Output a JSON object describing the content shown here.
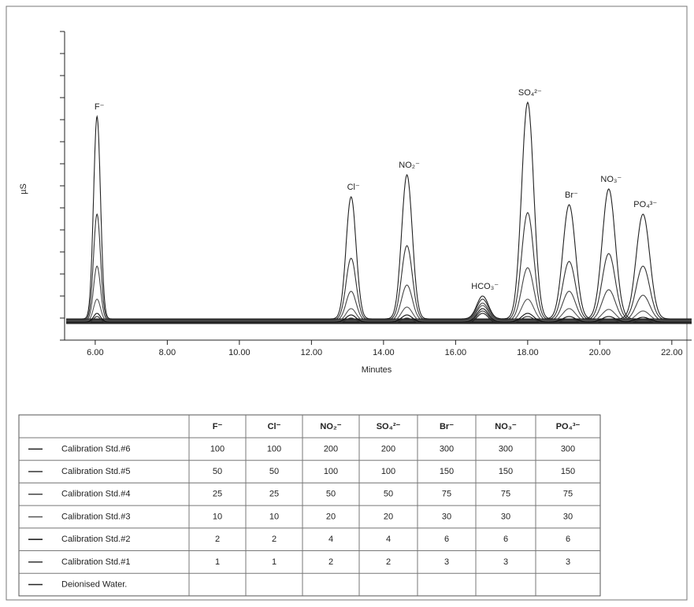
{
  "chart_data": {
    "type": "chromatogram",
    "x_label": "Minutes",
    "y_label": "µS",
    "xlim": [
      5.15,
      22.55
    ],
    "ylim": [
      0,
      392
    ],
    "xticks": [
      {
        "value": 6,
        "label": "6.00"
      },
      {
        "value": 8,
        "label": "8.00"
      },
      {
        "value": 10,
        "label": "10.00"
      },
      {
        "value": 12,
        "label": "12.00"
      },
      {
        "value": 14,
        "label": "14.00"
      },
      {
        "value": 16,
        "label": "16.00"
      },
      {
        "value": 18,
        "label": "18.00"
      },
      {
        "value": 20,
        "label": "20.00"
      },
      {
        "value": 22,
        "label": "22.00"
      }
    ],
    "yticks": [
      0,
      28,
      56,
      84,
      112,
      140,
      168,
      196,
      224,
      252,
      280,
      308,
      336,
      364,
      392
    ],
    "peaks": [
      {
        "label": "F⁻",
        "x": 6.05
      },
      {
        "label": "Cl⁻",
        "x": 13.1
      },
      {
        "label": "NO₂⁻",
        "x": 14.65
      },
      {
        "label": "HCO₃⁻",
        "x": 16.75
      },
      {
        "label": "SO₄²⁻",
        "x": 18.0
      },
      {
        "label": "Br⁻",
        "x": 19.15
      },
      {
        "label": "NO₃⁻",
        "x": 20.25
      },
      {
        "label": "PO₄³⁻",
        "x": 21.2
      }
    ],
    "series": [
      {
        "name": "Calibration Std.#6",
        "color": "#222222",
        "baseline": 27,
        "values": [
          284,
          182,
          210,
          56,
          302,
          172,
          192,
          160
        ]
      },
      {
        "name": "Calibration Std.#5",
        "color": "#333333",
        "baseline": 26,
        "values": [
          160,
          104,
          120,
          52,
          162,
          100,
          110,
          94
        ]
      },
      {
        "name": "Calibration Std.#4",
        "color": "#444444",
        "baseline": 25,
        "values": [
          94,
          62,
          70,
          47,
          92,
          62,
          64,
          57
        ]
      },
      {
        "name": "Calibration Std.#3",
        "color": "#555555",
        "baseline": 24,
        "values": [
          52,
          40,
          42,
          44,
          52,
          40,
          39,
          37
        ]
      },
      {
        "name": "Calibration Std.#2",
        "color": "#111111",
        "baseline": 23,
        "values": [
          34,
          32,
          32,
          40,
          34,
          30,
          30,
          29
        ]
      },
      {
        "name": "Calibration Std.#1",
        "color": "#333333",
        "baseline": 22,
        "values": [
          30,
          28,
          28,
          37,
          30,
          27,
          27,
          26
        ]
      },
      {
        "name": "Deionised Water.",
        "color": "#222222",
        "baseline": 21,
        "values": [
          21,
          21,
          21,
          34,
          21,
          21,
          21,
          21
        ]
      }
    ]
  },
  "table": {
    "header": [
      "F⁻",
      "Cl⁻",
      "NO₂⁻",
      "SO₄²⁻",
      "Br⁻",
      "NO₃⁻",
      "PO₄³⁻"
    ],
    "rows": [
      [
        "100",
        "100",
        "200",
        "200",
        "300",
        "300",
        "300"
      ],
      [
        "50",
        "50",
        "100",
        "100",
        "150",
        "150",
        "150"
      ],
      [
        "25",
        "25",
        "50",
        "50",
        "75",
        "75",
        "75"
      ],
      [
        "10",
        "10",
        "20",
        "20",
        "30",
        "30",
        "30"
      ],
      [
        "2",
        "2",
        "4",
        "4",
        "6",
        "6",
        "6"
      ],
      [
        "1",
        "1",
        "2",
        "2",
        "3",
        "3",
        "3"
      ]
    ]
  }
}
